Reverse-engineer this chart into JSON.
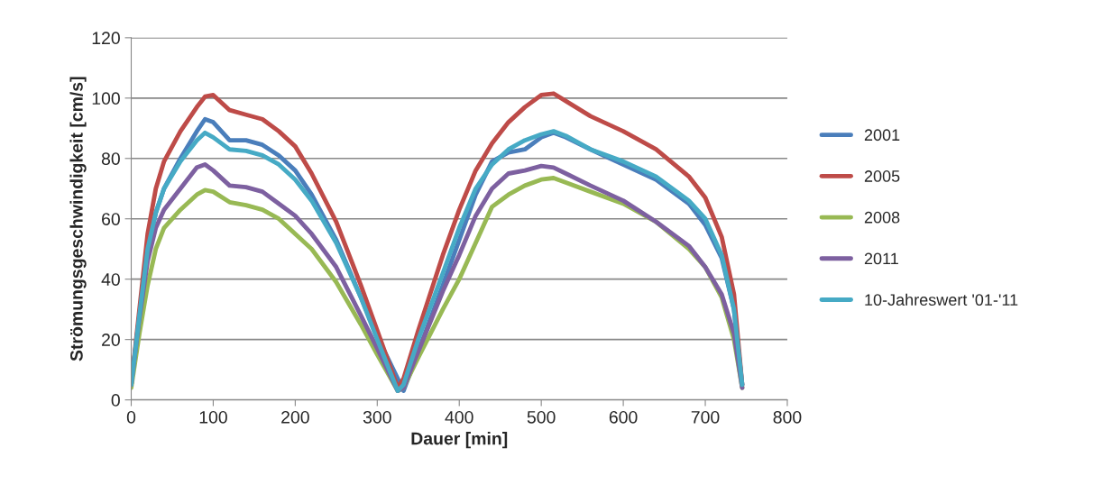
{
  "chart_data": {
    "type": "line",
    "xlabel": "Dauer [min]",
    "ylabel": "Strömungsgeschwindigkeit [cm/s]",
    "x": [
      0,
      10,
      20,
      30,
      40,
      60,
      80,
      90,
      100,
      120,
      140,
      160,
      180,
      200,
      220,
      250,
      280,
      300,
      325,
      332,
      350,
      380,
      400,
      420,
      440,
      460,
      480,
      500,
      515,
      530,
      560,
      600,
      640,
      680,
      700,
      720,
      735,
      745
    ],
    "series": [
      {
        "name": "2001",
        "color": "#4a7ebb",
        "values": [
          5,
          28,
          50,
          62,
          70,
          80,
          89,
          93,
          92,
          86,
          86,
          84.5,
          81,
          76,
          68,
          53,
          34,
          21,
          7,
          3,
          16,
          38,
          53,
          68,
          79,
          82,
          83,
          87,
          88.5,
          87,
          83,
          78,
          73,
          65,
          58,
          47,
          30,
          5
        ]
      },
      {
        "name": "2005",
        "color": "#be4b48",
        "values": [
          5,
          30,
          55,
          70,
          79,
          89,
          97,
          100.5,
          101,
          96,
          94.5,
          93,
          89,
          84,
          75,
          59,
          38,
          23,
          4,
          7,
          23,
          48,
          63,
          76,
          85,
          92,
          97,
          101,
          101.5,
          99,
          94,
          89,
          83,
          74,
          67,
          54,
          35,
          5
        ]
      },
      {
        "name": "2008",
        "color": "#98b954",
        "values": [
          4,
          22,
          38,
          50,
          57,
          63,
          68,
          69.5,
          69,
          65.5,
          64.5,
          63,
          60,
          55,
          50,
          39,
          25,
          15,
          3,
          4,
          14,
          30,
          40,
          52,
          64,
          68,
          71,
          73,
          73.5,
          72,
          69,
          65,
          59,
          50,
          44,
          34,
          20,
          4
        ]
      },
      {
        "name": "2011",
        "color": "#7d60a0",
        "values": [
          5,
          27,
          46,
          57,
          63,
          70,
          77,
          78,
          76,
          71,
          70.5,
          69,
          65,
          61,
          55,
          44,
          28,
          17,
          3,
          4,
          16,
          36,
          48,
          61,
          70,
          75,
          76,
          77.5,
          77,
          75,
          71,
          66,
          59,
          51,
          44,
          35,
          22,
          4
        ]
      },
      {
        "name": "10-Jahreswert '01-'11",
        "color": "#46aac5",
        "values": [
          5,
          28,
          50,
          62,
          70,
          79,
          86,
          88.5,
          87,
          83,
          82.5,
          81,
          78,
          73,
          66,
          52,
          34,
          20,
          3,
          5,
          20,
          42,
          57,
          70,
          78,
          83,
          86,
          88,
          89,
          87.5,
          83,
          79,
          74,
          66,
          60,
          48,
          30,
          5
        ]
      }
    ],
    "xlim": [
      0,
      800
    ],
    "xticks": [
      0,
      100,
      200,
      300,
      400,
      500,
      600,
      700,
      800
    ],
    "ylim": [
      0,
      120
    ],
    "yticks": [
      0,
      20,
      40,
      60,
      80,
      100,
      120
    ],
    "grid": "y",
    "legend": "right",
    "marker": "none",
    "line_style": "solid"
  }
}
